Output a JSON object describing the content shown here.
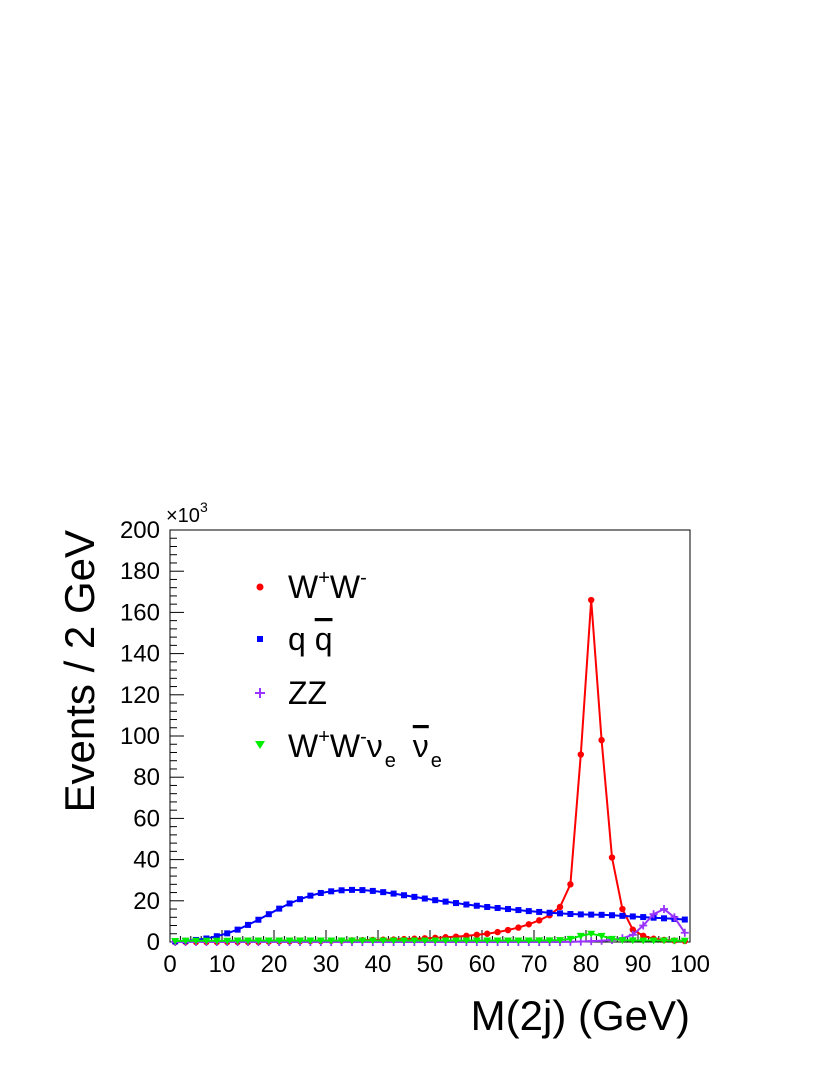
{
  "chart_data": {
    "type": "line",
    "xlabel": "M(2j) (GeV)",
    "ylabel": "Events / 2 GeV",
    "multiplier_label": "×10",
    "multiplier_exp": "3",
    "xlim": [
      0,
      100
    ],
    "ylim": [
      0,
      200
    ],
    "x_ticks": [
      "0",
      "10",
      "20",
      "30",
      "40",
      "50",
      "60",
      "70",
      "80",
      "90",
      "100"
    ],
    "y_ticks": [
      "0",
      "20",
      "40",
      "60",
      "80",
      "100",
      "120",
      "140",
      "160",
      "180",
      "200"
    ],
    "grid": false,
    "legend_position": "top-left",
    "x": [
      1,
      3,
      5,
      7,
      9,
      11,
      13,
      15,
      17,
      19,
      21,
      23,
      25,
      27,
      29,
      31,
      33,
      35,
      37,
      39,
      41,
      43,
      45,
      47,
      49,
      51,
      53,
      55,
      57,
      59,
      61,
      63,
      65,
      67,
      69,
      71,
      73,
      75,
      77,
      79,
      81,
      83,
      85,
      87,
      89,
      91,
      93,
      95,
      97,
      99
    ],
    "series": [
      {
        "legend": {
          "base": "W",
          "sup1": "+",
          "mid": "W",
          "sup2": "-"
        },
        "color": "#ff0000",
        "marker": "circle",
        "values": [
          0,
          0,
          0,
          0,
          0,
          0,
          0,
          0,
          0,
          0.2,
          0.3,
          0.3,
          0.4,
          0.5,
          0.5,
          0.6,
          0.7,
          0.8,
          0.9,
          1.0,
          1.1,
          1.2,
          1.4,
          1.6,
          1.8,
          2.0,
          2.3,
          2.6,
          3.0,
          3.5,
          4.0,
          4.8,
          5.8,
          7.0,
          8.6,
          10.5,
          13.0,
          17.0,
          28.0,
          91.0,
          166.0,
          98.0,
          41.0,
          16.0,
          6.0,
          3.0,
          1.6,
          1.0,
          0.7,
          0.5
        ]
      },
      {
        "legend": {
          "base": "q ",
          "bar": "q"
        },
        "color": "#0000ff",
        "marker": "square",
        "values": [
          0.3,
          0.6,
          1.0,
          1.7,
          2.8,
          4.2,
          6.0,
          8.3,
          10.8,
          13.5,
          16.2,
          18.7,
          20.8,
          22.5,
          23.8,
          24.6,
          25.1,
          25.3,
          25.2,
          24.8,
          24.2,
          23.5,
          22.7,
          21.9,
          21.1,
          20.3,
          19.6,
          18.9,
          18.2,
          17.6,
          17.0,
          16.5,
          16.0,
          15.5,
          15.0,
          14.6,
          14.2,
          13.9,
          13.6,
          13.4,
          13.3,
          13.2,
          13.0,
          12.7,
          12.4,
          12.1,
          11.8,
          11.5,
          11.2,
          10.9
        ]
      },
      {
        "legend": {
          "base": "ZZ"
        },
        "color": "#9933ff",
        "marker": "cross",
        "values": [
          0,
          0,
          0,
          0,
          0,
          0,
          0,
          0,
          0,
          0,
          0,
          0,
          0,
          0,
          0,
          0,
          0,
          0,
          0,
          0,
          0,
          0,
          0,
          0,
          0,
          0,
          0,
          0,
          0,
          0,
          0,
          0,
          0,
          0,
          0,
          0,
          0,
          0,
          0.1,
          0.2,
          0.4,
          0.6,
          1.0,
          1.8,
          3.5,
          8.0,
          13.5,
          16.0,
          12.0,
          4.5
        ]
      },
      {
        "legend": {
          "base": "W",
          "sup1": "+",
          "mid": "W",
          "sup2": "-",
          "nu": "ν",
          "nu_sub": "e",
          "nubar": "ν",
          "nubar_sub": "e"
        },
        "color": "#00ee00",
        "marker": "triangle-down",
        "values": [
          0.5,
          0.6,
          0.6,
          0.6,
          0.6,
          0.6,
          0.7,
          0.7,
          0.7,
          0.7,
          0.7,
          0.7,
          0.7,
          0.7,
          0.7,
          0.7,
          0.7,
          0.7,
          0.7,
          0.7,
          0.7,
          0.7,
          0.7,
          0.7,
          0.7,
          0.7,
          0.7,
          0.7,
          0.7,
          0.7,
          0.7,
          0.7,
          0.7,
          0.7,
          0.7,
          0.8,
          0.8,
          0.9,
          1.5,
          3.0,
          4.0,
          3.0,
          1.5,
          0.9,
          0.8,
          0.7,
          0.7,
          0.7,
          0.6,
          0.6
        ]
      }
    ]
  }
}
